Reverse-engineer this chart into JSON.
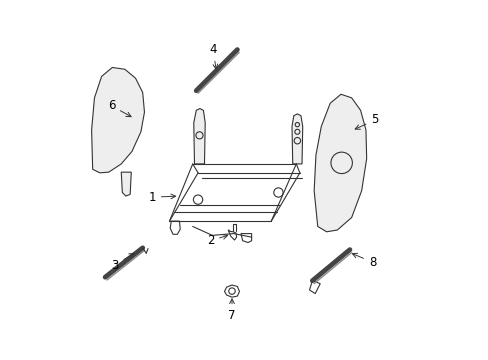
{
  "background_color": "#ffffff",
  "line_color": "#333333",
  "label_color": "#000000",
  "figsize": [
    4.89,
    3.6
  ],
  "dpi": 100
}
